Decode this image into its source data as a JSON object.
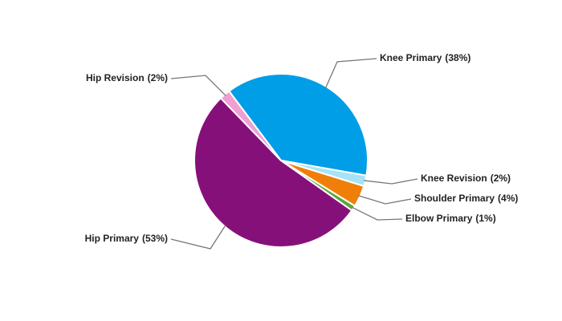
{
  "chart_data": {
    "type": "pie",
    "categories": [
      "Knee Primary",
      "Knee Revision",
      "Shoulder Primary",
      "Elbow Primary",
      "Hip Primary",
      "Hip Revision"
    ],
    "values": [
      38,
      2,
      4,
      1,
      53,
      2
    ],
    "value_labels": [
      "(38%)",
      "(2%)",
      "(4%)",
      "(1%)",
      "(53%)",
      "(2%)"
    ],
    "colors": [
      "#009ee7",
      "#a6e3f7",
      "#f07f09",
      "#5ea73b",
      "#86107a",
      "#ef9fd2"
    ]
  }
}
